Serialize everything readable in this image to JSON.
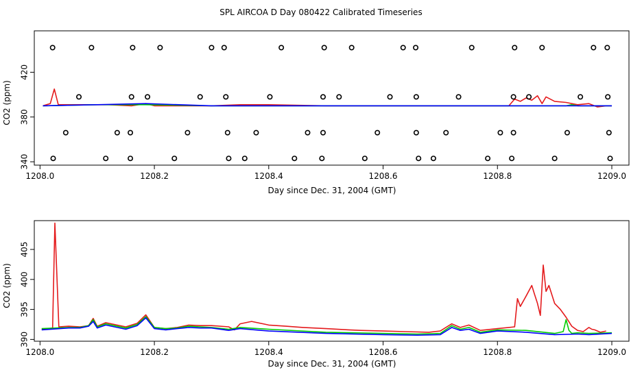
{
  "title": "SPL AIRCOA D  Day 080422  Calibrated Timeseries",
  "colors": {
    "red": "#e41a1c",
    "green": "#00cc00",
    "blue": "#0000ff",
    "axis": "#000000"
  },
  "chart_data": [
    {
      "type": "line",
      "title": "SPL AIRCOA D  Day 080422  Calibrated Timeseries",
      "xlabel": "Day since Dec. 31, 2004 (GMT)",
      "ylabel": "CO2 (ppm)",
      "xlim": [
        1207.99,
        1209.03
      ],
      "ylim": [
        337,
        457
      ],
      "xticks": [
        1208.0,
        1208.2,
        1208.4,
        1208.6,
        1208.8,
        1209.0
      ],
      "xtick_labels": [
        "1208.0",
        "1208.2",
        "1208.4",
        "1208.6",
        "1208.8",
        "1209.0"
      ],
      "yticks": [
        340,
        380,
        420
      ],
      "ytick_labels": [
        "340",
        "380",
        "420"
      ],
      "series": [
        {
          "color": "red",
          "x": [
            1208.005,
            1208.018,
            1208.025,
            1208.032,
            1208.06,
            1208.09,
            1208.12,
            1208.16,
            1208.185,
            1208.2,
            1208.25,
            1208.3,
            1208.35,
            1208.4,
            1208.5,
            1208.6,
            1208.7,
            1208.75,
            1208.82,
            1208.83,
            1208.84,
            1208.85,
            1208.86,
            1208.87,
            1208.878,
            1208.885,
            1208.9,
            1208.92,
            1208.94,
            1208.96,
            1208.975,
            1208.99,
            1209.0
          ],
          "y": [
            390,
            392,
            405,
            391,
            391,
            391,
            391,
            390,
            392,
            390,
            390,
            390,
            391,
            391,
            390,
            390,
            390,
            390,
            390,
            396,
            394,
            397,
            395,
            399,
            392,
            398,
            394,
            393,
            391,
            392,
            389,
            390,
            390
          ]
        },
        {
          "color": "green",
          "x": [
            1208.005,
            1208.1,
            1208.185,
            1208.3,
            1208.5,
            1208.7,
            1208.92,
            1208.93,
            1208.94,
            1209.0
          ],
          "y": [
            390,
            391,
            391,
            390,
            390,
            390,
            390,
            391,
            390,
            390
          ]
        },
        {
          "color": "blue",
          "x": [
            1208.005,
            1208.1,
            1208.185,
            1208.3,
            1208.5,
            1208.7,
            1208.8,
            1209.0
          ],
          "y": [
            390,
            391,
            392,
            390,
            390,
            390,
            390,
            390
          ]
        }
      ],
      "markers": {
        "symbol": "circle",
        "x": [
          1208.022,
          1208.09,
          1208.162,
          1208.21,
          1208.3,
          1208.322,
          1208.422,
          1208.497,
          1208.545,
          1208.635,
          1208.657,
          1208.755,
          1208.83,
          1208.878,
          1208.968,
          1208.992,
          1208.068,
          1208.16,
          1208.188,
          1208.28,
          1208.325,
          1208.402,
          1208.495,
          1208.523,
          1208.612,
          1208.658,
          1208.732,
          1208.828,
          1208.855,
          1208.945,
          1208.993,
          1208.045,
          1208.135,
          1208.158,
          1208.258,
          1208.328,
          1208.378,
          1208.468,
          1208.495,
          1208.59,
          1208.658,
          1208.71,
          1208.805,
          1208.828,
          1208.922,
          1208.995,
          1208.023,
          1208.115,
          1208.158,
          1208.235,
          1208.33,
          1208.358,
          1208.445,
          1208.493,
          1208.568,
          1208.662,
          1208.688,
          1208.783,
          1208.825,
          1208.9,
          1208.997
        ],
        "y": [
          442,
          442,
          442,
          442,
          442,
          442,
          442,
          442,
          442,
          442,
          442,
          442,
          442,
          442,
          442,
          442,
          398,
          398,
          398,
          398,
          398,
          398,
          398,
          398,
          398,
          398,
          398,
          398,
          398,
          398,
          398,
          366,
          366,
          366,
          366,
          366,
          366,
          366,
          366,
          366,
          366,
          366,
          366,
          366,
          366,
          366,
          343,
          343,
          343,
          343,
          343,
          343,
          343,
          343,
          343,
          343,
          343,
          343,
          343,
          343,
          343
        ]
      }
    },
    {
      "type": "line",
      "xlabel": "Day since Dec. 31, 2004 (GMT)",
      "ylabel": "CO2 (ppm)",
      "xlim": [
        1207.99,
        1209.03
      ],
      "ylim": [
        389.7,
        409.8
      ],
      "xticks": [
        1208.0,
        1208.2,
        1208.4,
        1208.6,
        1208.8,
        1209.0
      ],
      "xtick_labels": [
        "1208.0",
        "1208.2",
        "1208.4",
        "1208.6",
        "1208.8",
        "1209.0"
      ],
      "yticks": [
        390,
        395,
        400,
        405
      ],
      "ytick_labels": [
        "390",
        "395",
        "400",
        "405"
      ],
      "series": [
        {
          "color": "red",
          "x": [
            1208.003,
            1208.015,
            1208.022,
            1208.026,
            1208.033,
            1208.05,
            1208.07,
            1208.085,
            1208.093,
            1208.1,
            1208.115,
            1208.13,
            1208.15,
            1208.17,
            1208.185,
            1208.2,
            1208.22,
            1208.24,
            1208.26,
            1208.28,
            1208.3,
            1208.33,
            1208.34,
            1208.35,
            1208.37,
            1208.4,
            1208.43,
            1208.46,
            1208.5,
            1208.54,
            1208.56,
            1208.6,
            1208.64,
            1208.68,
            1208.7,
            1208.72,
            1208.735,
            1208.75,
            1208.77,
            1208.8,
            1208.82,
            1208.83,
            1208.835,
            1208.84,
            1208.85,
            1208.86,
            1208.865,
            1208.87,
            1208.875,
            1208.88,
            1208.885,
            1208.89,
            1208.9,
            1208.91,
            1208.92,
            1208.93,
            1208.94,
            1208.95,
            1208.96,
            1208.965,
            1208.97,
            1208.98,
            1208.99
          ],
          "y": [
            391.7,
            391.8,
            391.9,
            409.4,
            392.1,
            392.2,
            392.1,
            392.3,
            393.5,
            392.2,
            392.8,
            392.5,
            392.1,
            392.7,
            394.1,
            392.0,
            391.8,
            392.0,
            392.4,
            392.3,
            392.3,
            392.1,
            391.6,
            392.6,
            393.0,
            392.4,
            392.2,
            392.0,
            391.8,
            391.6,
            391.5,
            391.4,
            391.3,
            391.2,
            391.4,
            392.6,
            392.0,
            392.4,
            391.5,
            391.8,
            392.0,
            392.1,
            396.8,
            395.5,
            397.2,
            399.0,
            397.5,
            396.0,
            394.0,
            402.4,
            398.0,
            399.0,
            396.0,
            395.0,
            393.7,
            392.2,
            391.5,
            391.3,
            392.0,
            391.7,
            391.6,
            391.2,
            391.4
          ]
        },
        {
          "color": "green",
          "x": [
            1208.003,
            1208.05,
            1208.07,
            1208.085,
            1208.093,
            1208.1,
            1208.115,
            1208.13,
            1208.15,
            1208.17,
            1208.185,
            1208.2,
            1208.22,
            1208.24,
            1208.26,
            1208.28,
            1208.3,
            1208.33,
            1208.35,
            1208.4,
            1208.5,
            1208.6,
            1208.66,
            1208.7,
            1208.72,
            1208.735,
            1208.75,
            1208.77,
            1208.8,
            1208.85,
            1208.9,
            1208.915,
            1208.92,
            1208.925,
            1208.93,
            1208.94,
            1208.96,
            1209.0
          ],
          "y": [
            391.8,
            392.0,
            392.0,
            392.3,
            393.3,
            392.1,
            392.6,
            392.3,
            391.9,
            392.5,
            393.8,
            392.0,
            391.8,
            391.9,
            392.2,
            392.1,
            392.0,
            391.7,
            392.0,
            391.7,
            391.2,
            391.0,
            390.9,
            391.0,
            392.3,
            391.7,
            392.0,
            391.2,
            391.6,
            391.5,
            391.0,
            391.3,
            393.3,
            391.5,
            391.0,
            391.1,
            391.0,
            391.1
          ]
        },
        {
          "color": "blue",
          "x": [
            1208.003,
            1208.05,
            1208.07,
            1208.085,
            1208.093,
            1208.1,
            1208.115,
            1208.13,
            1208.15,
            1208.17,
            1208.185,
            1208.2,
            1208.22,
            1208.24,
            1208.26,
            1208.28,
            1208.3,
            1208.33,
            1208.35,
            1208.4,
            1208.5,
            1208.6,
            1208.66,
            1208.7,
            1208.72,
            1208.735,
            1208.75,
            1208.77,
            1208.8,
            1208.85,
            1208.9,
            1208.94,
            1208.96,
            1209.0
          ],
          "y": [
            391.6,
            391.9,
            391.9,
            392.2,
            393.0,
            391.9,
            392.4,
            392.1,
            391.7,
            392.3,
            393.6,
            391.8,
            391.6,
            391.8,
            392.0,
            391.9,
            391.9,
            391.5,
            391.8,
            391.4,
            391.0,
            390.8,
            390.7,
            390.8,
            392.0,
            391.5,
            391.7,
            391.0,
            391.4,
            391.2,
            390.8,
            390.9,
            390.8,
            391.0
          ]
        }
      ]
    }
  ]
}
